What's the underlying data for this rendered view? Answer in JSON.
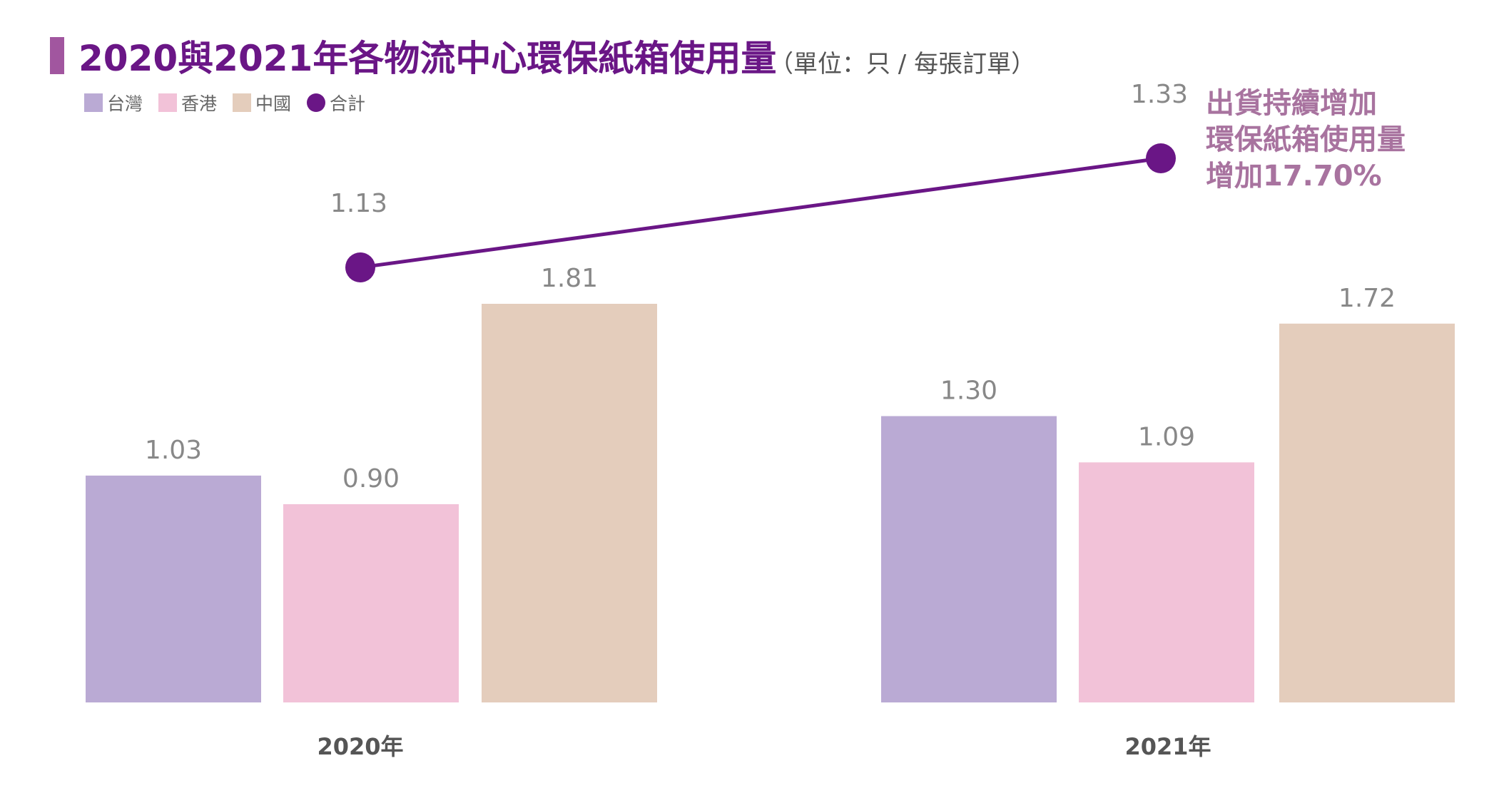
{
  "title": "2020與2021年各物流中心環保紙箱使用量",
  "subtitle": "（單位：只 / 每張訂單）",
  "annotation": [
    "出貨持續增加",
    "環保紙箱使用量",
    "增加17.70%"
  ],
  "colors": {
    "taiwan": "#baaad4",
    "hongkong": "#f2c2d8",
    "china": "#e4cdbc",
    "total": "#6a1686",
    "title": "#6a1686",
    "annotation": "#a8739f",
    "value_label": "#888888",
    "axis_label": "#555555"
  },
  "chart_data": {
    "type": "bar",
    "categories": [
      "2020年",
      "2021年"
    ],
    "series": [
      {
        "name": "台灣",
        "values": [
          1.03,
          1.3
        ],
        "value_labels": [
          "1.03",
          "1.30"
        ]
      },
      {
        "name": "香港",
        "values": [
          0.9,
          1.09
        ],
        "value_labels": [
          "0.90",
          "1.09"
        ]
      },
      {
        "name": "中國",
        "values": [
          1.81,
          1.72
        ],
        "value_labels": [
          "1.81",
          "1.72"
        ]
      }
    ],
    "line_series": {
      "name": "合計",
      "values": [
        1.13,
        1.33
      ],
      "value_labels": [
        "1.13",
        "1.33"
      ]
    },
    "legend": [
      "台灣",
      "香港",
      "中國",
      "合計"
    ],
    "legend_position": "top-left",
    "ylim": [
      0,
      1.81
    ],
    "grid": false
  }
}
